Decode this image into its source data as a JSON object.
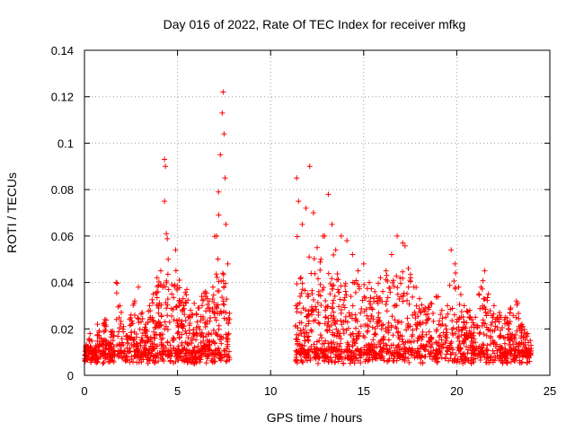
{
  "chart_data": {
    "type": "scatter",
    "title": "Day 016 of 2022, Rate Of TEC Index for receiver mfkg",
    "xlabel": "GPS time / hours",
    "ylabel": "ROTI / TECUs",
    "xlim": [
      0,
      25
    ],
    "ylim": [
      0,
      0.14
    ],
    "xticks": [
      0,
      5,
      10,
      15,
      20,
      25
    ],
    "xtick_labels": [
      "0",
      "5",
      "10",
      "15",
      "20",
      "25"
    ],
    "yticks": [
      0,
      0.02,
      0.04,
      0.06,
      0.08,
      0.1,
      0.12,
      0.14
    ],
    "ytick_labels": [
      "0",
      "0.02",
      "0.04",
      "0.06",
      "0.08",
      "0.1",
      "0.12",
      "0.14"
    ],
    "grid": true,
    "marker": "+",
    "color": "#ff0000",
    "data_gap_hours": [
      7.8,
      11.3
    ],
    "series": [
      {
        "name": "ROTI",
        "points": [
          [
            0.1,
            0.013
          ],
          [
            0.3,
            0.018
          ],
          [
            0.5,
            0.011
          ],
          [
            0.7,
            0.022
          ],
          [
            0.9,
            0.016
          ],
          [
            1.1,
            0.024
          ],
          [
            1.3,
            0.014
          ],
          [
            1.5,
            0.019
          ],
          [
            1.7,
            0.04
          ],
          [
            1.9,
            0.03
          ],
          [
            2.1,
            0.021
          ],
          [
            2.3,
            0.017
          ],
          [
            2.5,
            0.026
          ],
          [
            2.7,
            0.032
          ],
          [
            2.9,
            0.038
          ],
          [
            3.1,
            0.027
          ],
          [
            3.3,
            0.022
          ],
          [
            3.5,
            0.03
          ],
          [
            3.7,
            0.035
          ],
          [
            3.9,
            0.042
          ],
          [
            4.1,
            0.045
          ],
          [
            4.3,
            0.093
          ],
          [
            4.35,
            0.09
          ],
          [
            4.3,
            0.075
          ],
          [
            4.4,
            0.061
          ],
          [
            4.5,
            0.05
          ],
          [
            4.7,
            0.039
          ],
          [
            4.9,
            0.054
          ],
          [
            5.1,
            0.041
          ],
          [
            5.3,
            0.033
          ],
          [
            5.5,
            0.037
          ],
          [
            5.7,
            0.028
          ],
          [
            5.9,
            0.031
          ],
          [
            6.1,
            0.029
          ],
          [
            6.3,
            0.034
          ],
          [
            6.5,
            0.036
          ],
          [
            6.7,
            0.032
          ],
          [
            6.9,
            0.038
          ],
          [
            7.1,
            0.06
          ],
          [
            7.2,
            0.079
          ],
          [
            7.3,
            0.095
          ],
          [
            7.4,
            0.113
          ],
          [
            7.45,
            0.122
          ],
          [
            7.5,
            0.104
          ],
          [
            7.55,
            0.085
          ],
          [
            7.6,
            0.065
          ],
          [
            7.7,
            0.048
          ],
          [
            11.4,
            0.085
          ],
          [
            11.5,
            0.075
          ],
          [
            11.7,
            0.065
          ],
          [
            11.9,
            0.072
          ],
          [
            12.1,
            0.09
          ],
          [
            12.3,
            0.07
          ],
          [
            12.5,
            0.055
          ],
          [
            12.7,
            0.05
          ],
          [
            12.9,
            0.06
          ],
          [
            13.1,
            0.078
          ],
          [
            13.3,
            0.065
          ],
          [
            13.5,
            0.054
          ],
          [
            13.8,
            0.06
          ],
          [
            14.1,
            0.058
          ],
          [
            14.4,
            0.052
          ],
          [
            14.7,
            0.045
          ],
          [
            15.0,
            0.048
          ],
          [
            15.3,
            0.04
          ],
          [
            15.6,
            0.036
          ],
          [
            15.9,
            0.042
          ],
          [
            16.2,
            0.045
          ],
          [
            16.5,
            0.052
          ],
          [
            16.8,
            0.06
          ],
          [
            17.1,
            0.057
          ],
          [
            17.4,
            0.046
          ],
          [
            17.7,
            0.038
          ],
          [
            18.0,
            0.033
          ],
          [
            18.3,
            0.029
          ],
          [
            18.6,
            0.031
          ],
          [
            18.9,
            0.034
          ],
          [
            19.2,
            0.028
          ],
          [
            19.5,
            0.03
          ],
          [
            19.7,
            0.054
          ],
          [
            19.9,
            0.048
          ],
          [
            20.1,
            0.038
          ],
          [
            20.4,
            0.03
          ],
          [
            20.7,
            0.028
          ],
          [
            21.0,
            0.025
          ],
          [
            21.3,
            0.038
          ],
          [
            21.5,
            0.045
          ],
          [
            21.7,
            0.035
          ],
          [
            22.0,
            0.03
          ],
          [
            22.3,
            0.027
          ],
          [
            22.6,
            0.025
          ],
          [
            22.9,
            0.029
          ],
          [
            23.2,
            0.032
          ],
          [
            23.5,
            0.022
          ],
          [
            23.8,
            0.018
          ],
          [
            23.95,
            0.015
          ]
        ]
      }
    ]
  }
}
